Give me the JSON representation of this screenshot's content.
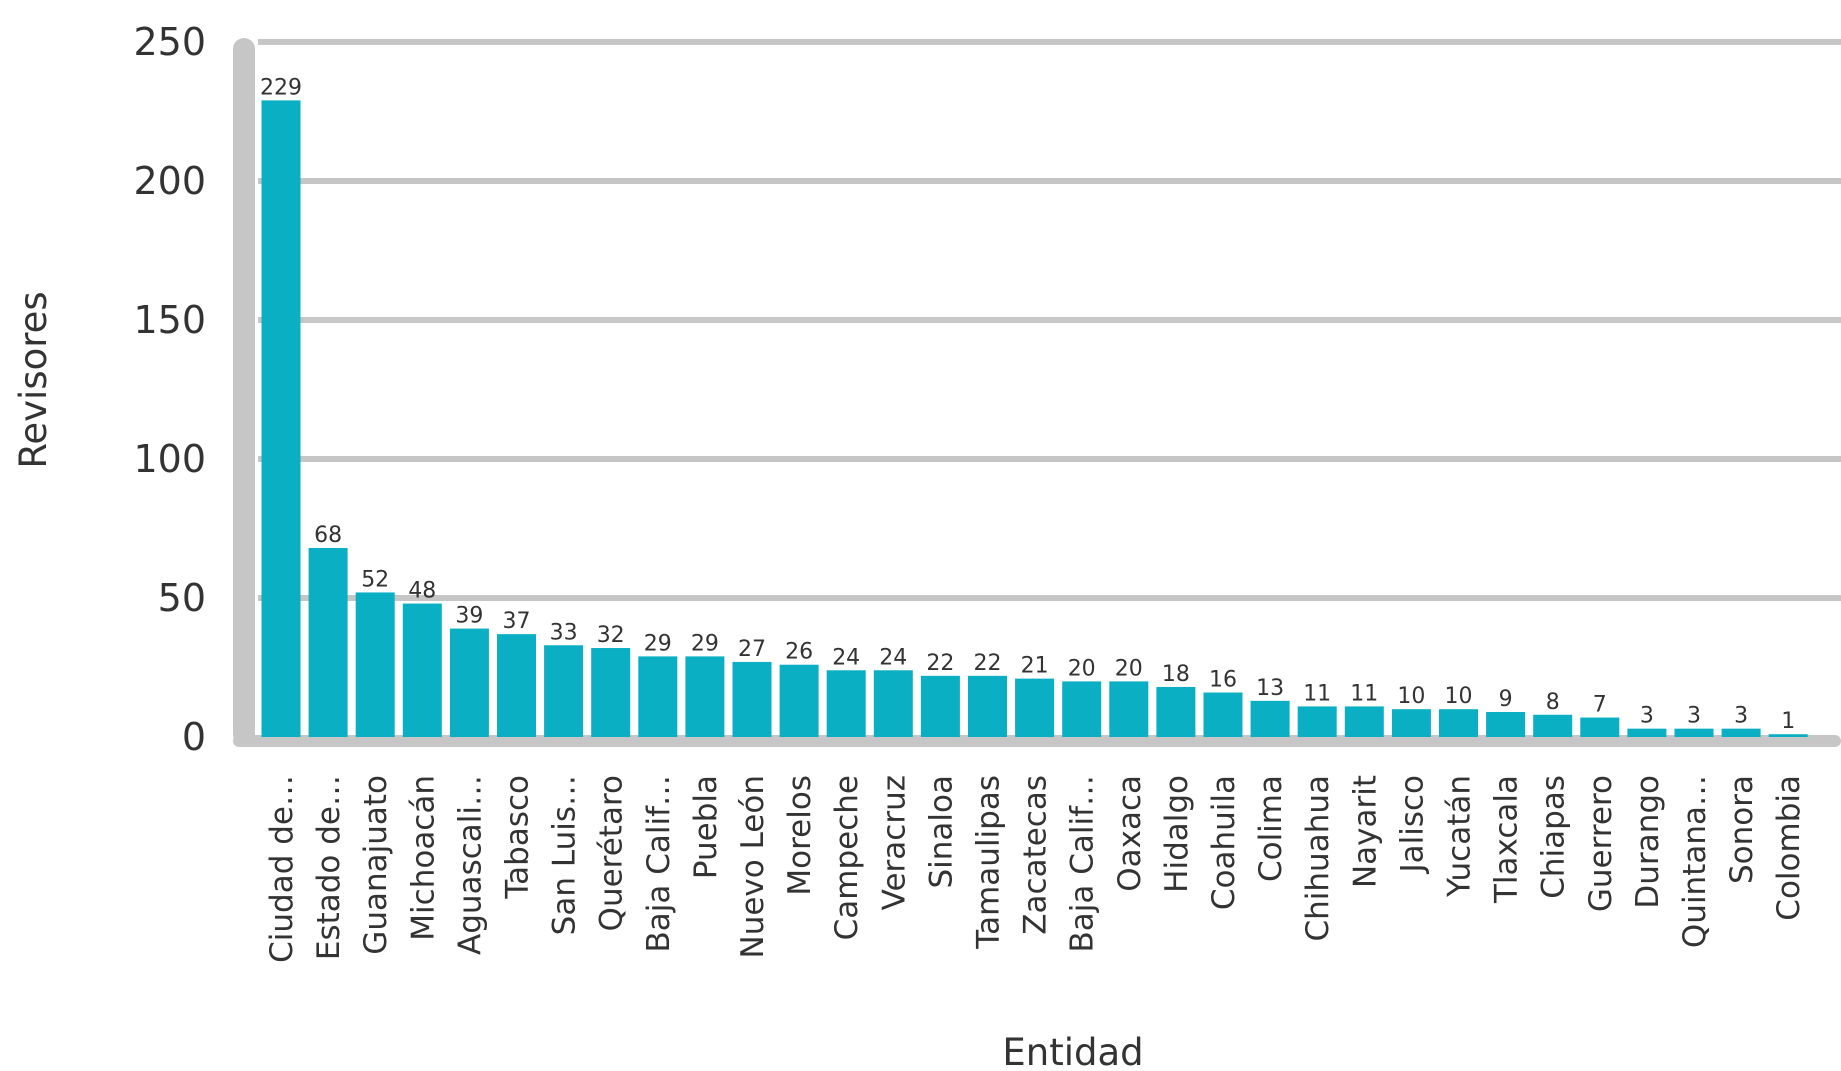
{
  "chart_data": {
    "type": "bar",
    "xlabel": "Entidad",
    "ylabel": "Revisores",
    "ylim": [
      0,
      250
    ],
    "yticks": [
      0,
      50,
      100,
      150,
      200,
      250
    ],
    "grid": true,
    "legend": "none",
    "bar_color": "#0aafc4",
    "grid_color": "#c6c6c6",
    "categories": [
      "Ciudad de…",
      "Estado de…",
      "Guanajuato",
      "Michoacán",
      "Aguascali…",
      "Tabasco",
      "San Luis…",
      "Querétaro",
      "Baja Calif…",
      "Puebla",
      "Nuevo León",
      "Morelos",
      "Campeche",
      "Veracruz",
      "Sinaloa",
      "Tamaulipas",
      "Zacatecas",
      "Baja Calif…",
      "Oaxaca",
      "Hidalgo",
      "Coahuila",
      "Colima",
      "Chihuahua",
      "Nayarit",
      "Jalisco",
      "Yucatán",
      "Tlaxcala",
      "Chiapas",
      "Guerrero",
      "Durango",
      "Quintana…",
      "Sonora",
      "Colombia"
    ],
    "values": [
      229,
      68,
      52,
      48,
      39,
      37,
      33,
      32,
      29,
      29,
      27,
      26,
      24,
      24,
      22,
      22,
      21,
      20,
      20,
      18,
      16,
      13,
      11,
      11,
      10,
      10,
      9,
      8,
      7,
      3,
      3,
      3,
      1
    ]
  }
}
